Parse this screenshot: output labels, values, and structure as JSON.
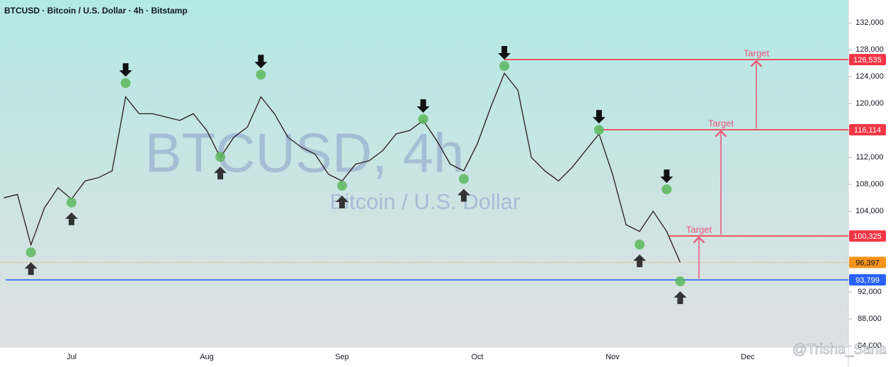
{
  "chart_data": {
    "type": "line",
    "title": "BTCUSD · Bitcoin / U.S. Dollar · 4h · Bitstamp",
    "watermark": "BTCUSD, 4h",
    "watermark_subtitle": "Bitcoin / U.S. Dollar",
    "credit": "@Trisha_Saha",
    "color": "#2a1a1a",
    "categories": [
      null,
      null,
      null,
      null,
      null,
      "Jul",
      null,
      null,
      null,
      null,
      null,
      null,
      null,
      null,
      null,
      "Aug",
      null,
      null,
      null,
      null,
      null,
      null,
      null,
      null,
      null,
      "Sep",
      null,
      null,
      null,
      null,
      null,
      null,
      null,
      null,
      null,
      "Oct",
      null,
      null,
      null,
      null,
      null,
      null,
      null,
      null,
      null,
      "Nov",
      null,
      null,
      null,
      null,
      null,
      null,
      null,
      null,
      null,
      "Dec",
      null,
      null,
      null,
      null,
      null,
      null,
      null
    ],
    "values": [
      106000,
      106500,
      99000,
      104500,
      107500,
      105800,
      108500,
      109000,
      110000,
      121000,
      118500,
      118500,
      118000,
      117500,
      118500,
      116000,
      112000,
      115000,
      116500,
      121000,
      118500,
      115000,
      113500,
      112500,
      109500,
      108500,
      111000,
      111500,
      113000,
      115500,
      116000,
      117500,
      114500,
      111000,
      110000,
      114000,
      119500,
      124500,
      122000,
      112000,
      110000,
      108500,
      110500,
      113000,
      115500,
      109500,
      102000,
      101000,
      104000,
      101000,
      96397,
      null,
      null,
      null,
      null,
      null,
      null,
      null,
      null,
      null,
      null,
      null,
      null
    ],
    "pivot_lows": [
      null,
      null,
      97900,
      null,
      null,
      105300,
      null,
      null,
      null,
      null,
      null,
      null,
      null,
      null,
      null,
      null,
      112100,
      null,
      null,
      null,
      null,
      null,
      null,
      null,
      null,
      107800,
      null,
      null,
      null,
      null,
      null,
      null,
      null,
      null,
      108800,
      null,
      null,
      null,
      null,
      null,
      null,
      null,
      null,
      null,
      null,
      null,
      null,
      99050,
      null,
      null,
      93580,
      null,
      null,
      null,
      null,
      null,
      null,
      null,
      null,
      null,
      null,
      null,
      null
    ],
    "pivot_highs": [
      null,
      null,
      null,
      null,
      null,
      null,
      null,
      null,
      null,
      123050,
      null,
      null,
      null,
      null,
      null,
      null,
      null,
      null,
      null,
      124300,
      null,
      null,
      null,
      null,
      null,
      null,
      null,
      null,
      null,
      null,
      null,
      117700,
      null,
      null,
      null,
      null,
      null,
      125600,
      null,
      null,
      null,
      null,
      null,
      null,
      116100,
      null,
      null,
      null,
      null,
      107260,
      null,
      null,
      null,
      null,
      null,
      null,
      null,
      null,
      null,
      null,
      null,
      null,
      null
    ],
    "levels": [
      {
        "value": 126535,
        "label": "126,535",
        "color": "#f23645"
      },
      {
        "value": 116114,
        "label": "116,114",
        "color": "#f23645"
      },
      {
        "value": 100325,
        "label": "100,325",
        "color": "#f23645"
      },
      {
        "value": 96397,
        "label": "96,397",
        "color": "#f7931a"
      },
      {
        "value": 93799,
        "label": "93,799",
        "color": "#2962ff"
      }
    ],
    "targets": [
      "Target",
      "Target",
      "Target"
    ],
    "ylim": [
      83800,
      135400
    ],
    "yticks": [
      {
        "value": 84000,
        "label": "84,000"
      },
      {
        "value": 88000,
        "label": "88,000"
      },
      {
        "value": 92000,
        "label": "92,000"
      },
      {
        "value": 96000,
        "label": "96,000"
      },
      {
        "value": 100000,
        "label": "100,000"
      },
      {
        "value": 104000,
        "label": "104,000"
      },
      {
        "value": 108000,
        "label": "108,000"
      },
      {
        "value": 112000,
        "label": "112,000"
      },
      {
        "value": 116000,
        "label": "116,000"
      },
      {
        "value": 120000,
        "label": "120,000"
      },
      {
        "value": 124000,
        "label": "124,000"
      },
      {
        "value": 128000,
        "label": "128,000"
      },
      {
        "value": 132000,
        "label": "132,000"
      }
    ]
  }
}
